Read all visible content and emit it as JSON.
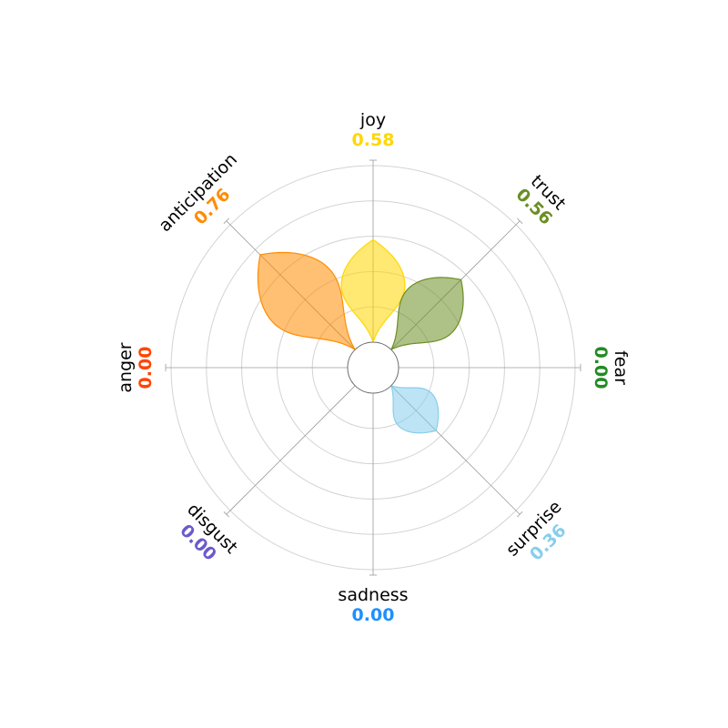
{
  "chart_data": {
    "type": "polar",
    "title": "",
    "rlim": [
      0,
      1
    ],
    "grid": true,
    "emotions": [
      {
        "name": "joy",
        "value": 0.58,
        "value_label": "0.58",
        "color": "#FFD700"
      },
      {
        "name": "trust",
        "value": 0.56,
        "value_label": "0.56",
        "color": "#6B8E23"
      },
      {
        "name": "fear",
        "value": 0.0,
        "value_label": "0.00",
        "color": "#228B22"
      },
      {
        "name": "surprise",
        "value": 0.36,
        "value_label": "0.36",
        "color": "#87CEEB"
      },
      {
        "name": "sadness",
        "value": 0.0,
        "value_label": "0.00",
        "color": "#1E90FF"
      },
      {
        "name": "disgust",
        "value": 0.0,
        "value_label": "0.00",
        "color": "#6A5ACD"
      },
      {
        "name": "anger",
        "value": 0.0,
        "value_label": "0.00",
        "color": "#FF4500"
      },
      {
        "name": "anticipation",
        "value": 0.76,
        "value_label": "0.76",
        "color": "#FF8C00"
      }
    ]
  }
}
